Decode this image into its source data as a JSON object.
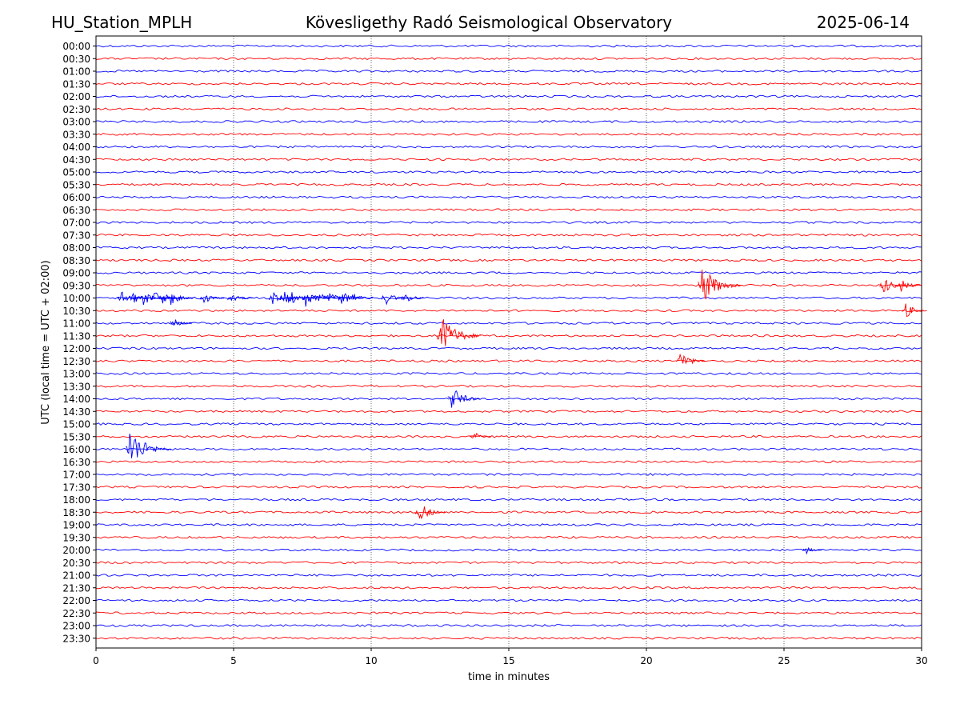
{
  "header": {
    "station": "HU_Station_MPLH",
    "observatory": "Kövesligethy Radó Seismological Observatory",
    "date": "2025-06-14"
  },
  "chart_data": {
    "type": "line",
    "title": "Kövesligethy Radó Seismological Observatory",
    "xlabel": "time in minutes",
    "ylabel": "UTC (local time = UTC + 02:00)",
    "xlim": [
      0,
      30
    ],
    "x_ticks": [
      "0",
      "5",
      "10",
      "15",
      "20",
      "25",
      "30"
    ],
    "x_tick_values": [
      0,
      5,
      10,
      15,
      20,
      25,
      30
    ],
    "grid": "vertical dotted lines at x ticks",
    "trace_colors": [
      "#0000ff",
      "#ff0000"
    ],
    "rows": [
      "00:00",
      "00:30",
      "01:00",
      "01:30",
      "02:00",
      "02:30",
      "03:00",
      "03:30",
      "04:00",
      "04:30",
      "05:00",
      "05:30",
      "06:00",
      "06:30",
      "07:00",
      "07:30",
      "08:00",
      "08:30",
      "09:00",
      "09:30",
      "10:00",
      "10:30",
      "11:00",
      "11:30",
      "12:00",
      "12:30",
      "13:00",
      "13:30",
      "14:00",
      "14:30",
      "15:00",
      "15:30",
      "16:00",
      "16:30",
      "17:00",
      "17:30",
      "18:00",
      "18:30",
      "19:00",
      "19:30",
      "20:00",
      "20:30",
      "21:00",
      "21:30",
      "22:00",
      "22:30",
      "23:00",
      "23:30"
    ],
    "events": [
      {
        "row": "09:30",
        "t": 22.0,
        "amp": 1.5
      },
      {
        "row": "09:30",
        "t": 28.6,
        "amp": 0.7
      },
      {
        "row": "09:30",
        "t": 29.2,
        "amp": 0.6
      },
      {
        "row": "10:00",
        "t": 0.9,
        "amp": 0.6
      },
      {
        "row": "10:00",
        "t": 1.3,
        "amp": 0.5
      },
      {
        "row": "10:00",
        "t": 1.7,
        "amp": 0.6
      },
      {
        "row": "10:00",
        "t": 2.1,
        "amp": 0.6
      },
      {
        "row": "10:00",
        "t": 2.4,
        "amp": 0.5
      },
      {
        "row": "10:00",
        "t": 2.7,
        "amp": 0.6
      },
      {
        "row": "10:00",
        "t": 3.9,
        "amp": 0.5
      },
      {
        "row": "10:00",
        "t": 4.9,
        "amp": 0.6
      },
      {
        "row": "10:00",
        "t": 6.4,
        "amp": 0.6
      },
      {
        "row": "10:00",
        "t": 6.8,
        "amp": 0.6
      },
      {
        "row": "10:00",
        "t": 7.1,
        "amp": 0.6
      },
      {
        "row": "10:00",
        "t": 7.6,
        "amp": 0.7
      },
      {
        "row": "10:00",
        "t": 8.0,
        "amp": 0.6
      },
      {
        "row": "10:00",
        "t": 8.4,
        "amp": 0.6
      },
      {
        "row": "10:00",
        "t": 8.9,
        "amp": 0.6
      },
      {
        "row": "10:00",
        "t": 9.3,
        "amp": 0.5
      },
      {
        "row": "10:00",
        "t": 10.5,
        "amp": 0.6
      },
      {
        "row": "10:00",
        "t": 11.2,
        "amp": 0.5
      },
      {
        "row": "10:30",
        "t": 29.4,
        "amp": 0.6
      },
      {
        "row": "11:00",
        "t": 2.8,
        "amp": 0.4
      },
      {
        "row": "11:30",
        "t": 12.5,
        "amp": 1.6
      },
      {
        "row": "12:30",
        "t": 21.2,
        "amp": 0.8
      },
      {
        "row": "14:00",
        "t": 12.9,
        "amp": 1.0
      },
      {
        "row": "15:30",
        "t": 13.7,
        "amp": 0.4
      },
      {
        "row": "16:00",
        "t": 1.2,
        "amp": 1.6
      },
      {
        "row": "18:30",
        "t": 11.7,
        "amp": 0.9
      },
      {
        "row": "20:00",
        "t": 25.8,
        "amp": 0.3
      }
    ]
  }
}
